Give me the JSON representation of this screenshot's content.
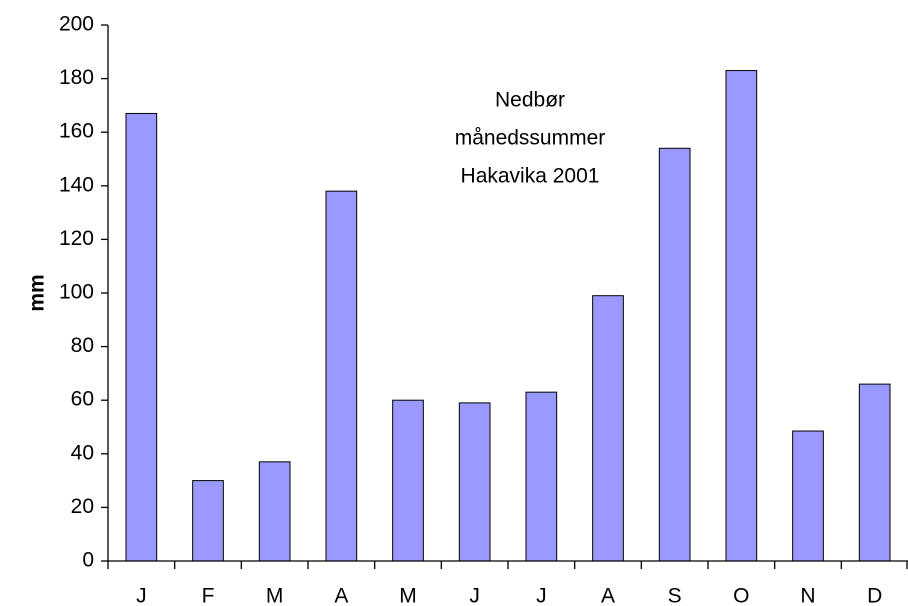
{
  "chart_data": {
    "type": "bar",
    "title_lines": [
      "Nedbør",
      "månedssummer",
      "Hakavika 2001"
    ],
    "y_label": "mm",
    "categories": [
      "J",
      "F",
      "M",
      "A",
      "M",
      "J",
      "J",
      "A",
      "S",
      "O",
      "N",
      "D"
    ],
    "values": [
      167,
      30,
      37,
      138,
      60,
      59,
      63,
      99,
      154,
      183,
      48.5,
      66
    ],
    "color": "#9999ff",
    "ylim": [
      0,
      200
    ],
    "yticks": [
      0,
      20,
      40,
      60,
      80,
      100,
      120,
      140,
      160,
      180,
      200
    ],
    "grid": false
  }
}
